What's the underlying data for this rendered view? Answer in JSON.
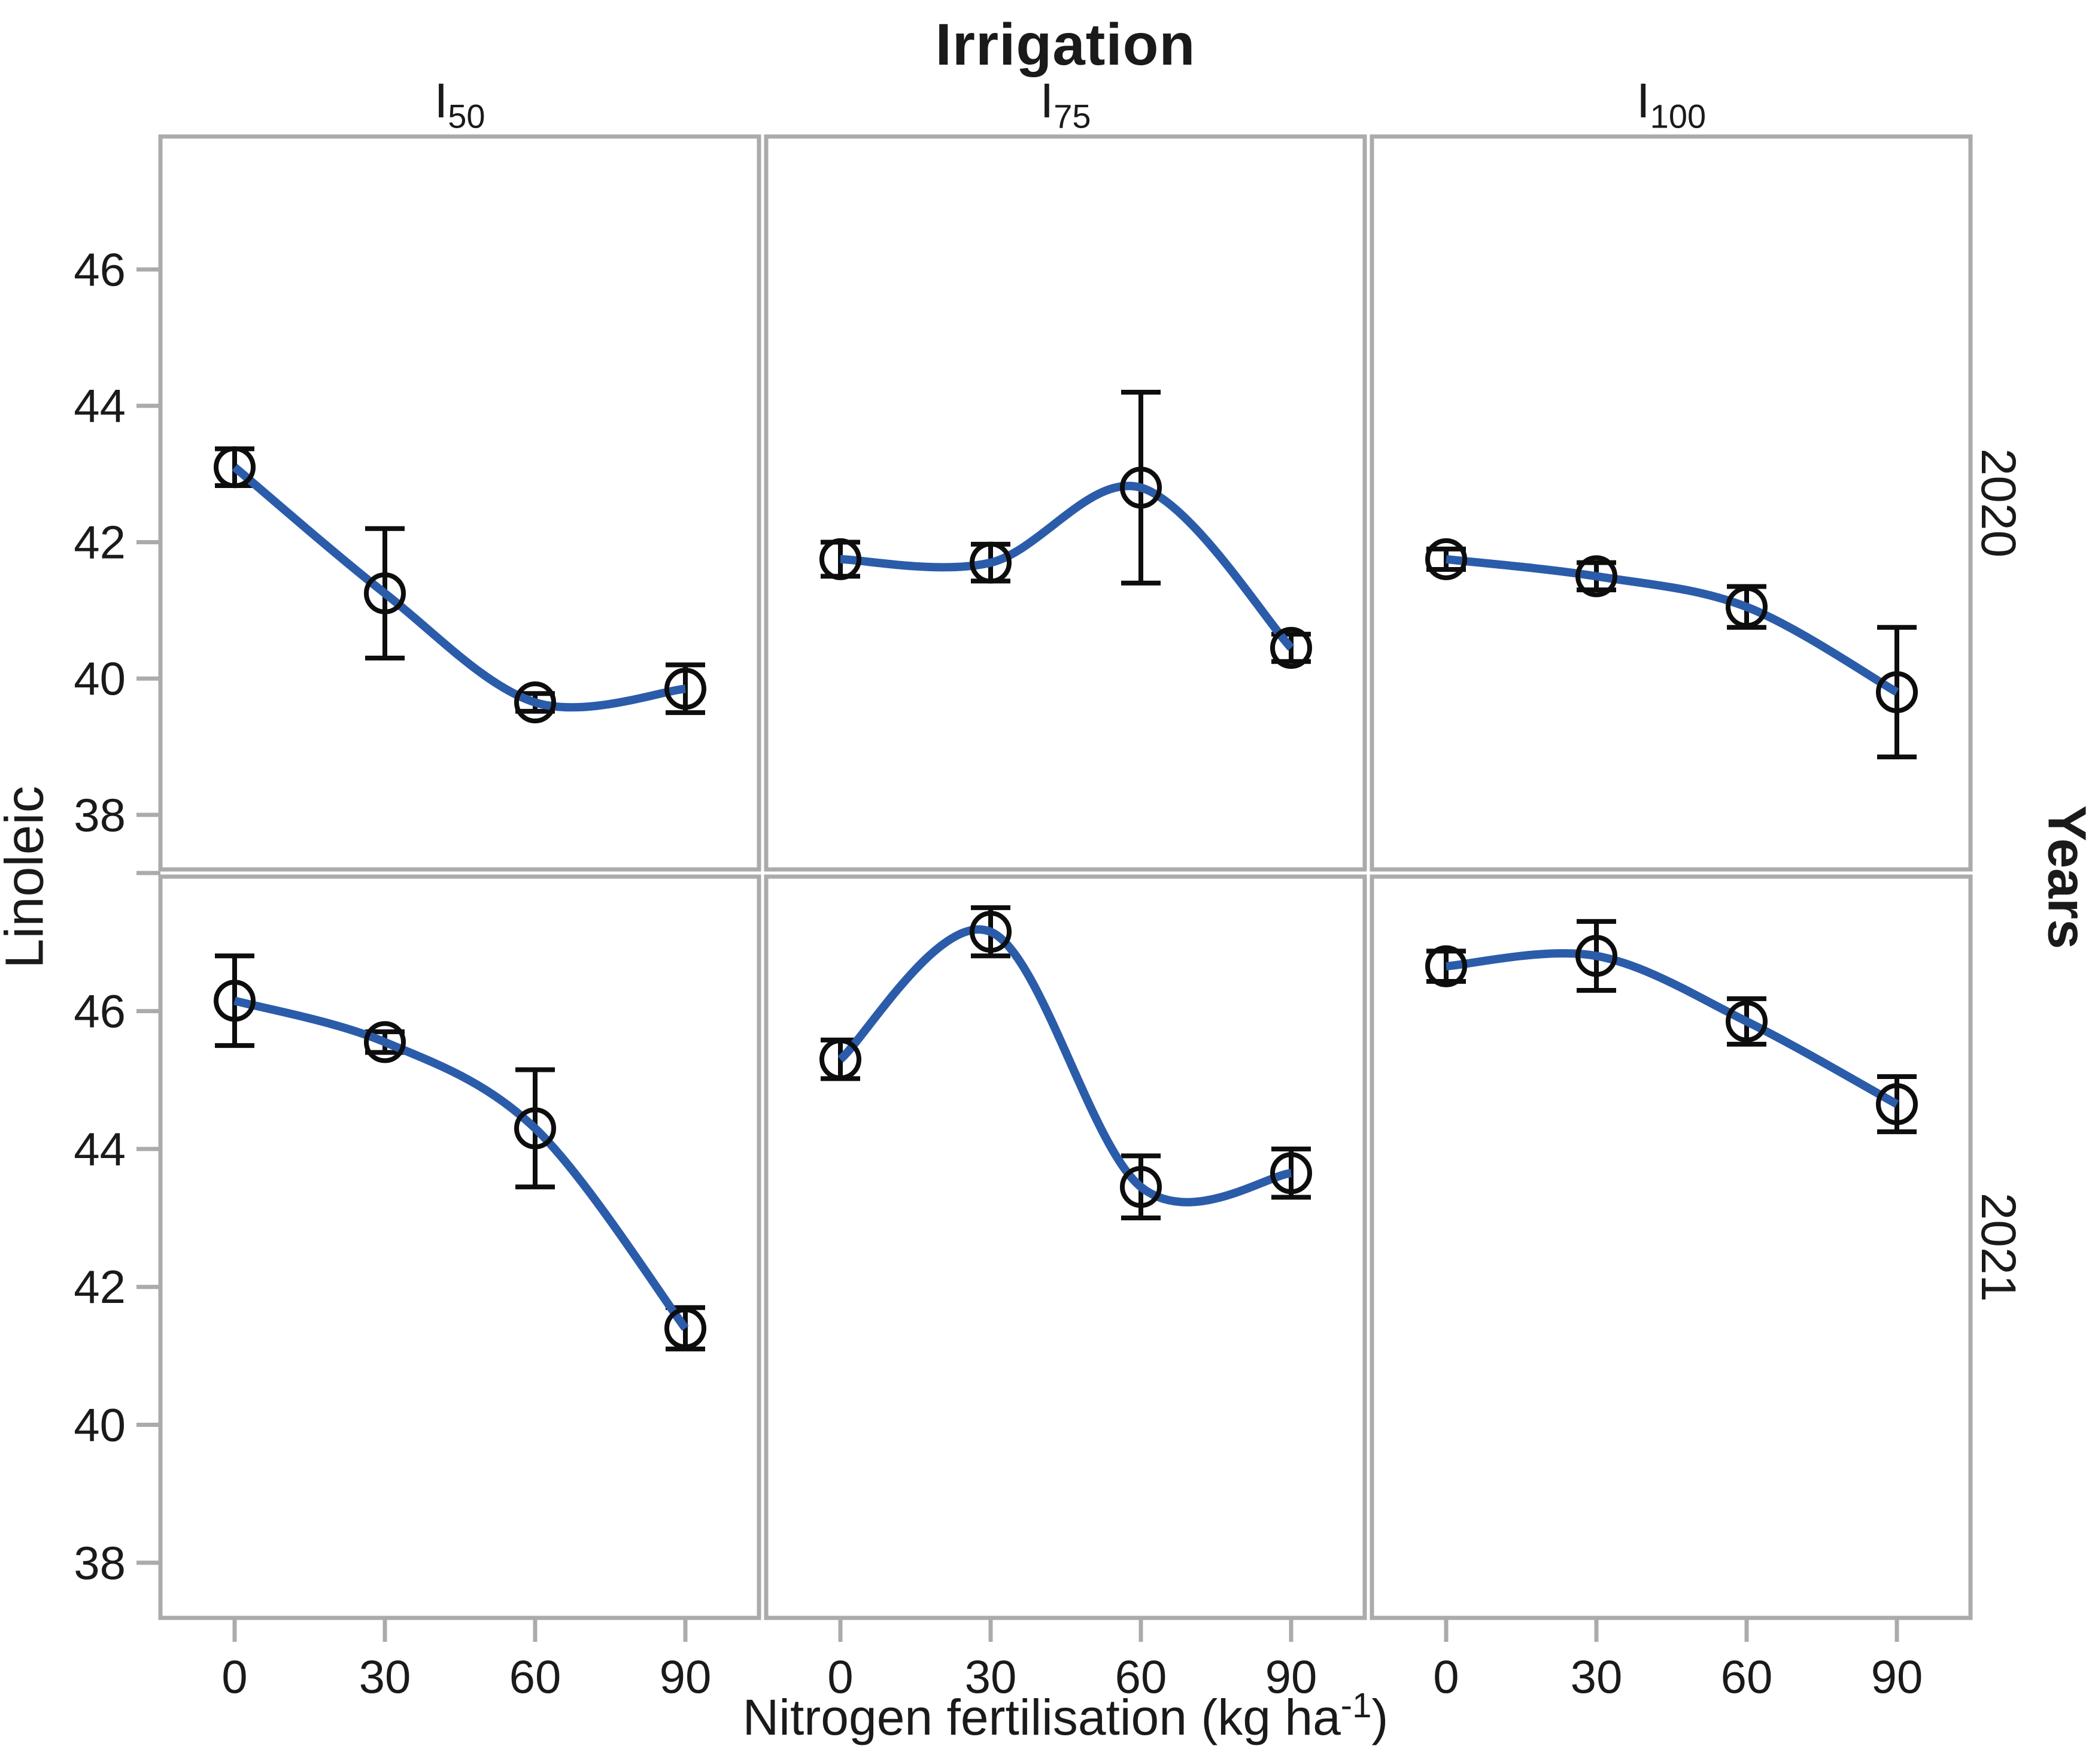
{
  "title": "Irrigation",
  "axes": {
    "y_label": "Linoleic",
    "right_label": "Years",
    "x_label_pre": "Nitrogen fertilisation (kg ha",
    "x_label_sup": "-1",
    "x_label_post": ")"
  },
  "facets": {
    "columns": [
      {
        "base": "I",
        "sub": "50"
      },
      {
        "base": "I",
        "sub": "75"
      },
      {
        "base": "I",
        "sub": "100"
      }
    ],
    "rows": [
      "2020",
      "2021"
    ]
  },
  "chart_data": {
    "type": "line",
    "x": [
      0,
      30,
      60,
      90
    ],
    "x_tick_labels": [
      "0",
      "30",
      "60",
      "90"
    ],
    "y_ticks": [
      38,
      40,
      42,
      44,
      46
    ],
    "ylim": [
      37.2,
      47.95
    ],
    "xlabel": "Nitrogen fertilisation (kg ha-1)",
    "ylabel": "Linoleic",
    "facet_row_label": "Years",
    "facet_col_label": "Irrigation",
    "grid": false,
    "legend": "none",
    "marker": "open-circle",
    "error_bars": true,
    "series": [
      {
        "row": "2020",
        "col": "I50",
        "values": [
          43.1,
          41.25,
          39.65,
          39.85
        ],
        "errors": [
          0.27,
          0.95,
          0.13,
          0.35
        ]
      },
      {
        "row": "2020",
        "col": "I75",
        "values": [
          41.75,
          41.7,
          42.8,
          40.45
        ],
        "errors": [
          0.25,
          0.27,
          1.4,
          0.2
        ]
      },
      {
        "row": "2020",
        "col": "I100",
        "values": [
          41.75,
          41.5,
          41.05,
          39.8
        ],
        "errors": [
          0.15,
          0.2,
          0.3,
          0.95
        ]
      },
      {
        "row": "2021",
        "col": "I50",
        "values": [
          46.15,
          45.55,
          44.3,
          41.4
        ],
        "errors": [
          0.65,
          0.15,
          0.85,
          0.3
        ]
      },
      {
        "row": "2021",
        "col": "I75",
        "values": [
          45.3,
          47.15,
          43.45,
          43.65
        ],
        "errors": [
          0.28,
          0.35,
          0.45,
          0.35
        ]
      },
      {
        "row": "2021",
        "col": "I100",
        "values": [
          46.65,
          46.8,
          45.85,
          44.65
        ],
        "errors": [
          0.22,
          0.5,
          0.33,
          0.4
        ]
      }
    ]
  },
  "style": {
    "line_color": "#2b5caa",
    "marker_color": "#0d0d0d",
    "border_color": "#ababab",
    "text_color": "#1a1a1a"
  }
}
